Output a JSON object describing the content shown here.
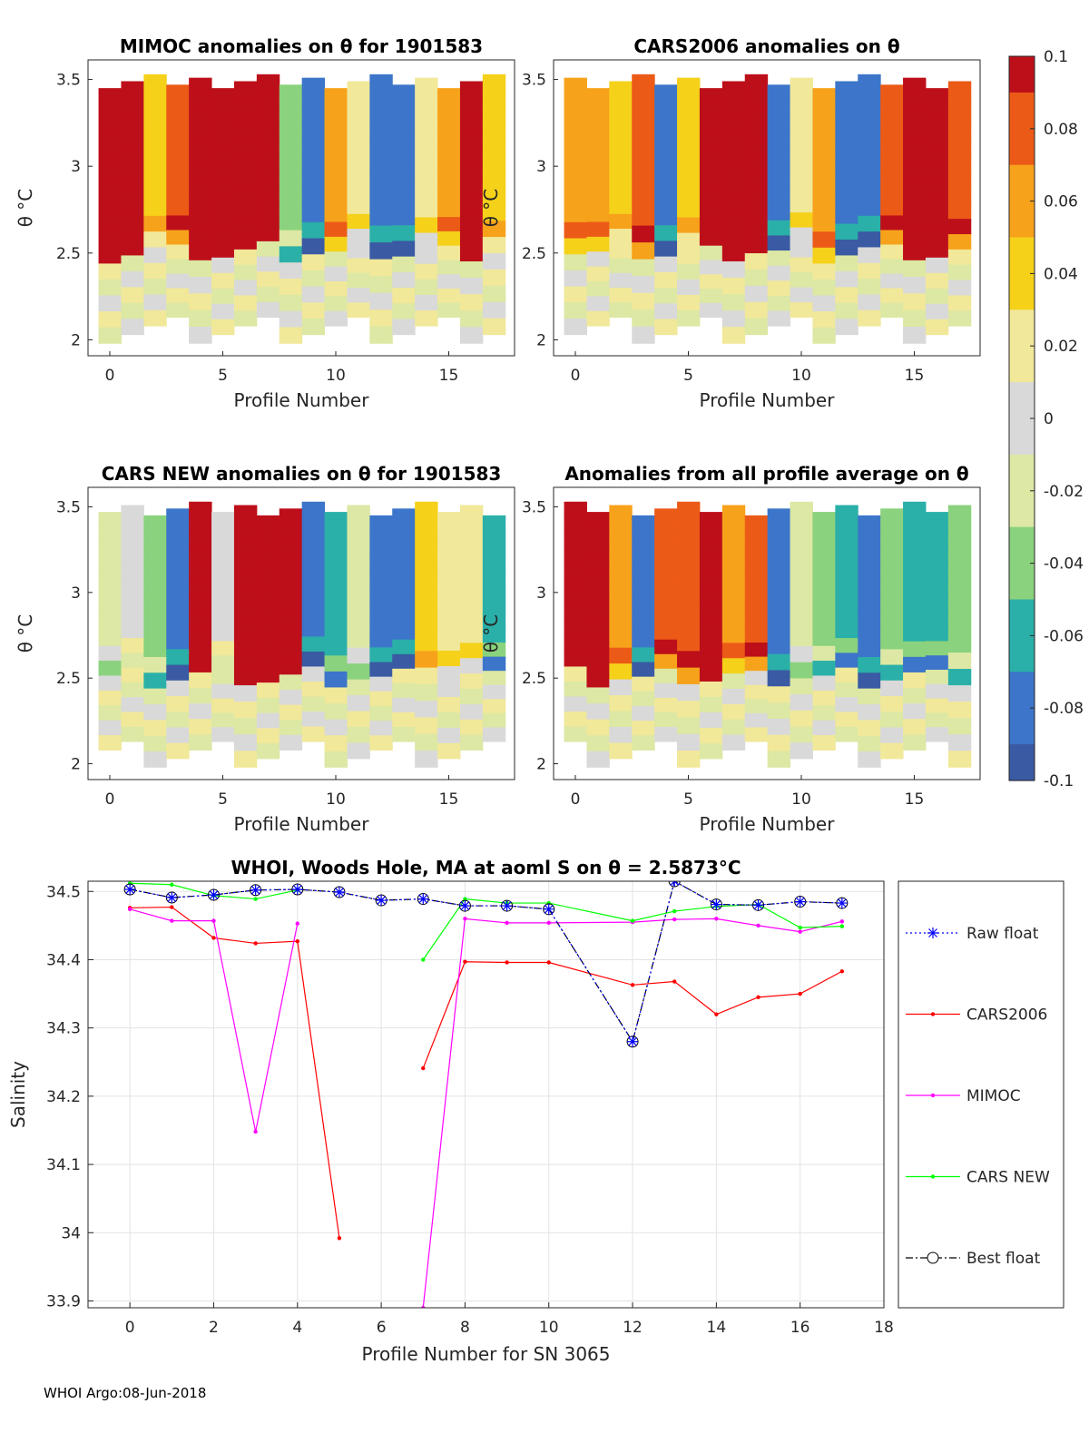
{
  "colors": {
    "cmap": [
      "#3a5aa3",
      "#3c75c9",
      "#2ab0a8",
      "#8ad27d",
      "#dce8a4",
      "#d9d9d9",
      "#f1e89a",
      "#f5d11a",
      "#f7a21b",
      "#ec5a17",
      "#bd0f1a"
    ],
    "raw_float": "#0000ff",
    "cars2006": "#ff0000",
    "mimoc": "#ff00ff",
    "cars_new": "#00ff00",
    "best_float": "#000000"
  },
  "colorbar": {
    "ticks": [
      "0.1",
      "0.08",
      "0.06",
      "0.04",
      "0.02",
      "0",
      "-0.02",
      "-0.04",
      "-0.06",
      "-0.08",
      "-0.1"
    ]
  },
  "heatmaps": [
    {
      "title": "MIMOC anomalies on θ  for 1901583",
      "xlabel": "Profile Number",
      "ylabel": "θ °C",
      "xticks": [
        "0",
        "5",
        "10",
        "15"
      ],
      "yticks": [
        "3.5",
        "3",
        "2.5",
        "2"
      ]
    },
    {
      "title": "CARS2006 anomalies on θ",
      "xlabel": "Profile Number",
      "ylabel": "θ °C",
      "xticks": [
        "0",
        "5",
        "10",
        "15"
      ],
      "yticks": [
        "3.5",
        "3",
        "2.5",
        "2"
      ]
    },
    {
      "title": "CARS NEW anomalies on θ for 1901583",
      "xlabel": "Profile Number",
      "ylabel": "θ °C",
      "xticks": [
        "0",
        "5",
        "10",
        "15"
      ],
      "yticks": [
        "3.5",
        "3",
        "2.5",
        "2"
      ]
    },
    {
      "title": "Anomalies from all profile average on θ",
      "xlabel": "Profile Number",
      "ylabel": "θ °C",
      "xticks": [
        "0",
        "5",
        "10",
        "15"
      ],
      "yticks": [
        "3.5",
        "3",
        "2.5",
        "2"
      ]
    }
  ],
  "chart_data": {
    "type": "line",
    "title": "WHOI, Woods Hole, MA at aoml S on θ = 2.5873°C",
    "xlabel": "Profile Number for SN 3065",
    "ylabel": "Salinity",
    "xlim": [
      -1,
      18
    ],
    "ylim": [
      33.89,
      34.515
    ],
    "xticks": [
      "0",
      "2",
      "4",
      "6",
      "8",
      "10",
      "12",
      "14",
      "16",
      "18"
    ],
    "yticks": [
      "34.5",
      "34.4",
      "34.3",
      "34.2",
      "34.1",
      "34",
      "33.9"
    ],
    "series": [
      {
        "name": "Raw float",
        "x": [
          0,
          1,
          2,
          3,
          4,
          5,
          6,
          7,
          8,
          9,
          10,
          12,
          13,
          14,
          15,
          16,
          17
        ],
        "values": [
          34.503,
          34.491,
          34.495,
          34.502,
          34.503,
          34.499,
          34.487,
          34.489,
          34.479,
          34.479,
          34.474,
          34.28,
          34.515,
          34.481,
          34.48,
          34.485,
          34.483
        ]
      },
      {
        "name": "CARS2006",
        "x": [
          0,
          1,
          2,
          3,
          4,
          5,
          null,
          7,
          8,
          9,
          10,
          12,
          13,
          14,
          15,
          16,
          17
        ],
        "values": [
          34.476,
          34.477,
          34.432,
          34.424,
          34.427,
          33.992,
          null,
          34.241,
          34.397,
          34.396,
          34.396,
          34.363,
          34.368,
          34.32,
          34.345,
          34.35,
          34.383
        ]
      },
      {
        "name": "MIMOC",
        "x": [
          0,
          1,
          2,
          3,
          4,
          null,
          7,
          8,
          9,
          10,
          12,
          13,
          14,
          15,
          16,
          17
        ],
        "values": [
          34.474,
          34.457,
          34.457,
          34.148,
          34.453,
          null,
          33.89,
          34.46,
          34.454,
          34.454,
          34.455,
          34.459,
          34.46,
          34.45,
          34.441,
          34.456
        ]
      },
      {
        "name": "CARS NEW",
        "x": [
          0,
          1,
          2,
          3,
          4,
          null,
          7,
          8,
          9,
          10,
          12,
          13,
          14,
          15,
          16,
          17
        ],
        "values": [
          34.512,
          34.51,
          34.494,
          34.489,
          34.502,
          null,
          34.4,
          34.489,
          34.483,
          34.483,
          34.457,
          34.471,
          34.478,
          34.481,
          34.447,
          34.449
        ]
      },
      {
        "name": "Best float",
        "x": [
          0,
          1,
          2,
          3,
          4,
          5,
          6,
          7,
          8,
          9,
          10,
          12,
          13,
          14,
          15,
          16,
          17
        ],
        "values": [
          34.503,
          34.491,
          34.495,
          34.502,
          34.503,
          34.499,
          34.487,
          34.489,
          34.479,
          34.479,
          34.474,
          34.28,
          34.515,
          34.481,
          34.48,
          34.485,
          34.483
        ]
      }
    ],
    "legend": [
      "Raw float",
      "CARS2006",
      "MIMOC",
      "CARS NEW",
      "Best float"
    ]
  },
  "footer": "WHOI Argo:08-Jun-2018"
}
